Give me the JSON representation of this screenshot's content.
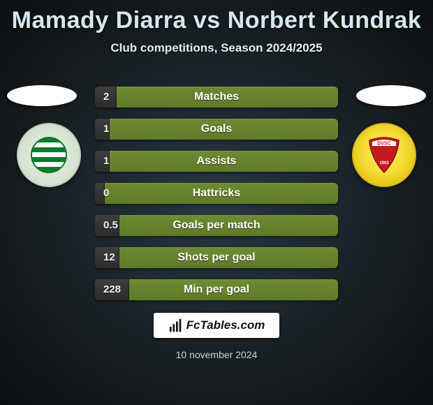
{
  "title": "Mamady Diarra vs Norbert Kundrak",
  "subtitle": "Club competitions, Season 2024/2025",
  "date_text": "10 november 2024",
  "brand": {
    "text": "FcTables.com"
  },
  "colors": {
    "bar_green_top": "#6f8a33",
    "bar_green_bottom": "#5f7a27",
    "bar_dark_top": "#3e3e3e",
    "bar_dark_bottom": "#2c2c2c",
    "text_light": "#d6e8ee",
    "bg_center": "#2a3942",
    "bg_outer": "#0c0f11",
    "badge_right_yellow": "#f6de3a",
    "badge_right_red": "#c51920",
    "badge_left_green": "#0a7a2c"
  },
  "stats": [
    {
      "label": "Matches",
      "left_value": "2",
      "left_fill_pct": 9
    },
    {
      "label": "Goals",
      "left_value": "1",
      "left_fill_pct": 6
    },
    {
      "label": "Assists",
      "left_value": "1",
      "left_fill_pct": 6
    },
    {
      "label": "Hattricks",
      "left_value": "0",
      "left_fill_pct": 4
    },
    {
      "label": "Goals per match",
      "left_value": "0.5",
      "left_fill_pct": 10
    },
    {
      "label": "Shots per goal",
      "left_value": "12",
      "left_fill_pct": 10
    },
    {
      "label": "Min per goal",
      "left_value": "228",
      "left_fill_pct": 14
    }
  ],
  "left_club": {
    "name": "club-left-badge"
  },
  "right_club": {
    "name": "club-right-badge",
    "text": "DVSC",
    "year": "1902"
  }
}
